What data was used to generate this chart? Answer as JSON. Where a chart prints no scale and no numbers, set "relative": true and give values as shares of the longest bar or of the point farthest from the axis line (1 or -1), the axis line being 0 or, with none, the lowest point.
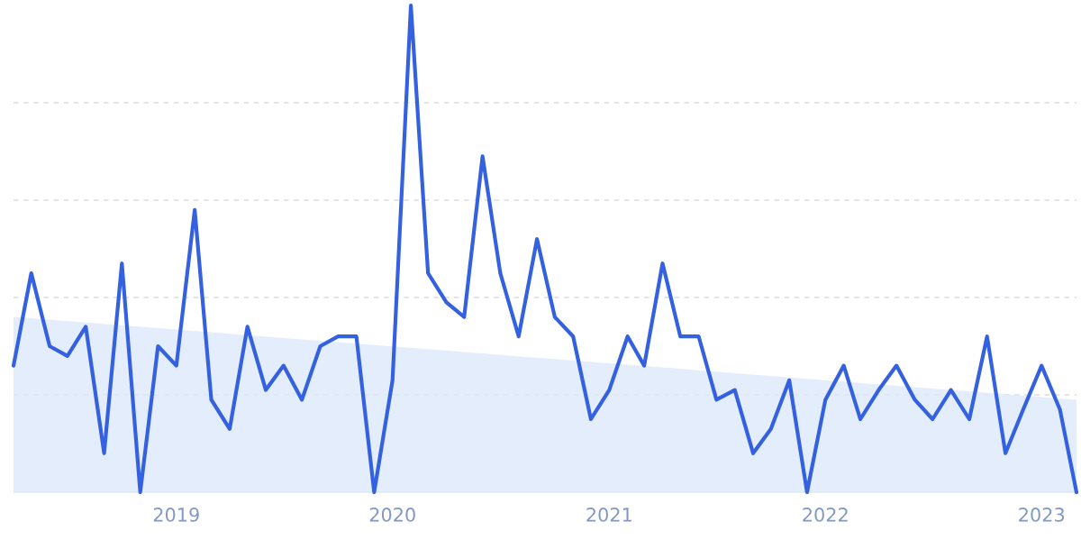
{
  "chart_data": {
    "type": "line",
    "relative": true,
    "grid": "y",
    "marker": "none",
    "line_style": "solid",
    "x": [
      "2018-04",
      "2018-05",
      "2018-06",
      "2018-07",
      "2018-08",
      "2018-09",
      "2018-10",
      "2018-11",
      "2018-12",
      "2019-01",
      "2019-02",
      "2019-03",
      "2019-04",
      "2019-05",
      "2019-06",
      "2019-07",
      "2019-08",
      "2019-09",
      "2019-10",
      "2019-11",
      "2019-12",
      "2020-01",
      "2020-02",
      "2020-03",
      "2020-04",
      "2020-05",
      "2020-06",
      "2020-07",
      "2020-08",
      "2020-09",
      "2020-10",
      "2020-11",
      "2020-12",
      "2021-01",
      "2021-02",
      "2021-03",
      "2021-04",
      "2021-05",
      "2021-06",
      "2021-07",
      "2021-08",
      "2021-09",
      "2021-10",
      "2021-11",
      "2021-12",
      "2022-01",
      "2022-02",
      "2022-03",
      "2022-04",
      "2022-05",
      "2022-06",
      "2022-07",
      "2022-08",
      "2022-09",
      "2022-10",
      "2022-11",
      "2022-12",
      "2023-01",
      "2023-02",
      "2023-03"
    ],
    "xlim": [
      "2018-04",
      "2023-03"
    ],
    "xticks": [
      {
        "value": "2019",
        "label": "2019"
      },
      {
        "value": "2020",
        "label": "2020"
      },
      {
        "value": "2021",
        "label": "2021"
      },
      {
        "value": "2022",
        "label": "2022"
      },
      {
        "value": "2023",
        "label": "2023"
      }
    ],
    "series": [
      {
        "type": "area",
        "color": "#dce9fb",
        "x": [
          "2018-04",
          "2023-03"
        ],
        "values": [
          0.36,
          0.19
        ]
      },
      {
        "color": "#3461e0",
        "values": [
          0.26,
          0.45,
          0.3,
          0.28,
          0.34,
          0.08,
          0.47,
          0,
          0.3,
          0.26,
          0.58,
          0.19,
          0.13,
          0.34,
          0.21,
          0.26,
          0.19,
          0.3,
          0.32,
          0.32,
          0,
          0.23,
          1,
          0.45,
          0.39,
          0.36,
          0.69,
          0.45,
          0.32,
          0.52,
          0.36,
          0.32,
          0.15,
          0.21,
          0.32,
          0.26,
          0.47,
          0.32,
          0.32,
          0.19,
          0.21,
          0.08,
          0.13,
          0.23,
          0,
          0.19,
          0.26,
          0.15,
          0.21,
          0.26,
          0.19,
          0.15,
          0.21,
          0.15,
          0.32,
          0.08,
          0.17,
          0.26,
          0.17,
          0
        ]
      }
    ]
  }
}
